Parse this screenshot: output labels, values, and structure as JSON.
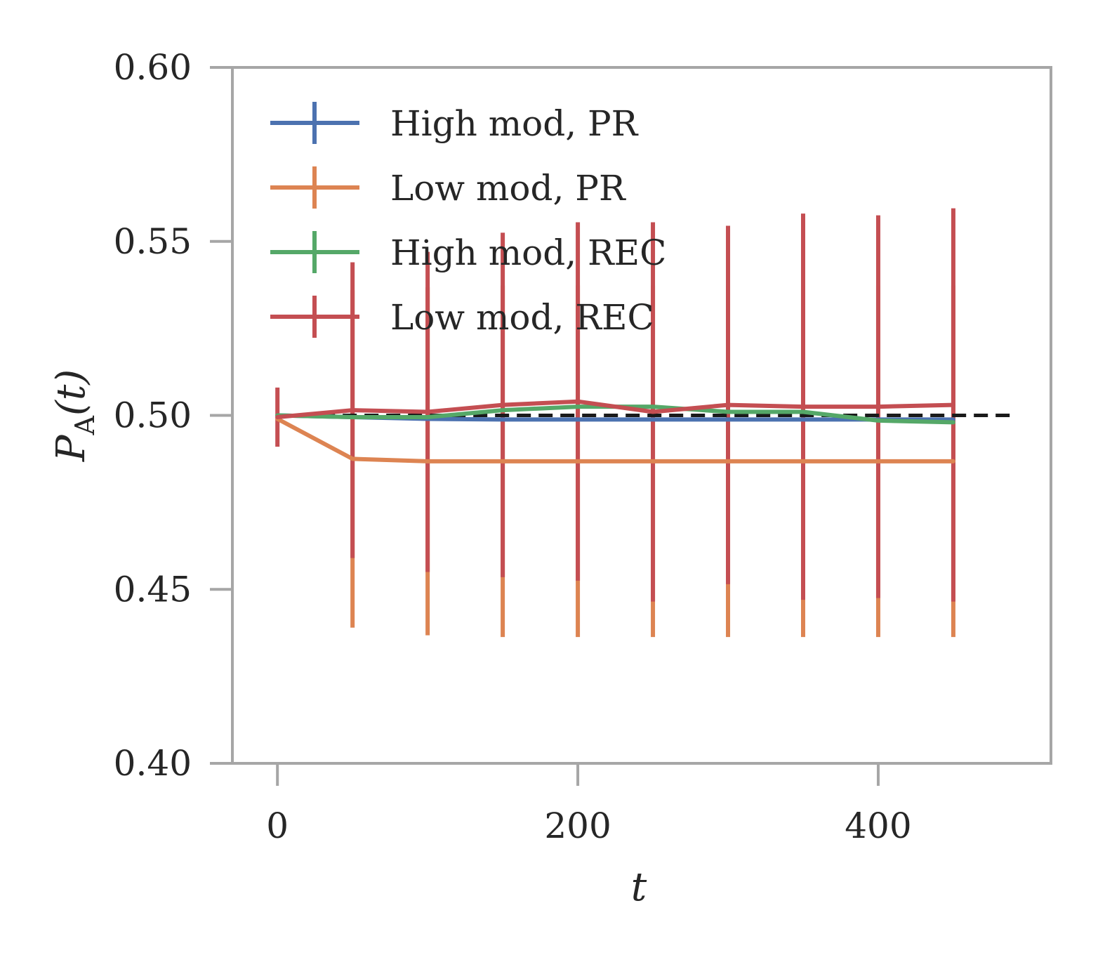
{
  "chart_data": {
    "type": "line",
    "xlabel": "t",
    "ylabel": {
      "main": "P",
      "sub": "A",
      "rest": "(t)"
    },
    "xlim": [
      -30,
      515
    ],
    "ylim": [
      0.4,
      0.6
    ],
    "xticks": [
      0,
      200,
      400
    ],
    "xtick_labels": [
      "0",
      "200",
      "400"
    ],
    "yticks": [
      0.4,
      0.45,
      0.5,
      0.55,
      0.6
    ],
    "ytick_labels": [
      "0.40",
      "0.45",
      "0.50",
      "0.55",
      "0.60"
    ],
    "grid": false,
    "legend_position": "top-left",
    "reference_line": {
      "y": 0.5,
      "x": [
        0,
        490
      ],
      "style": "dashed",
      "color": "#1a1a1a"
    },
    "x": [
      0,
      50,
      100,
      150,
      200,
      250,
      300,
      350,
      400,
      450
    ],
    "series": [
      {
        "name": "High mod, PR",
        "color": "#4c72b0",
        "values": [
          0.5,
          0.4995,
          0.499,
          0.4988,
          0.4988,
          0.4988,
          0.4988,
          0.4988,
          0.4988,
          0.4988
        ],
        "error": [
          0.0005,
          0.0005,
          0.0005,
          0.0005,
          0.0005,
          0.0005,
          0.0005,
          0.0005,
          0.0005,
          0.0005
        ]
      },
      {
        "name": "Low mod, PR",
        "color": "#dd8452",
        "values": [
          0.499,
          0.4875,
          0.4868,
          0.4868,
          0.4868,
          0.4868,
          0.4868,
          0.4868,
          0.4868,
          0.4868
        ],
        "error": [
          0.0005,
          0.0485,
          0.05,
          0.0505,
          0.0505,
          0.0505,
          0.0505,
          0.0505,
          0.0505,
          0.0505
        ]
      },
      {
        "name": "High mod, REC",
        "color": "#55a868",
        "values": [
          0.5,
          0.4995,
          0.4995,
          0.5015,
          0.5025,
          0.5025,
          0.501,
          0.501,
          0.4985,
          0.498
        ],
        "error": [
          0.0005,
          0.0005,
          0.0005,
          0.0005,
          0.0005,
          0.0005,
          0.0005,
          0.0005,
          0.0005,
          0.0005
        ]
      },
      {
        "name": "Low mod, REC",
        "color": "#c44e52",
        "values": [
          0.4995,
          0.5015,
          0.501,
          0.503,
          0.504,
          0.501,
          0.503,
          0.5025,
          0.5025,
          0.503
        ],
        "error": [
          0.0085,
          0.0425,
          0.046,
          0.0495,
          0.0515,
          0.0545,
          0.0515,
          0.0555,
          0.055,
          0.0565
        ]
      }
    ]
  }
}
